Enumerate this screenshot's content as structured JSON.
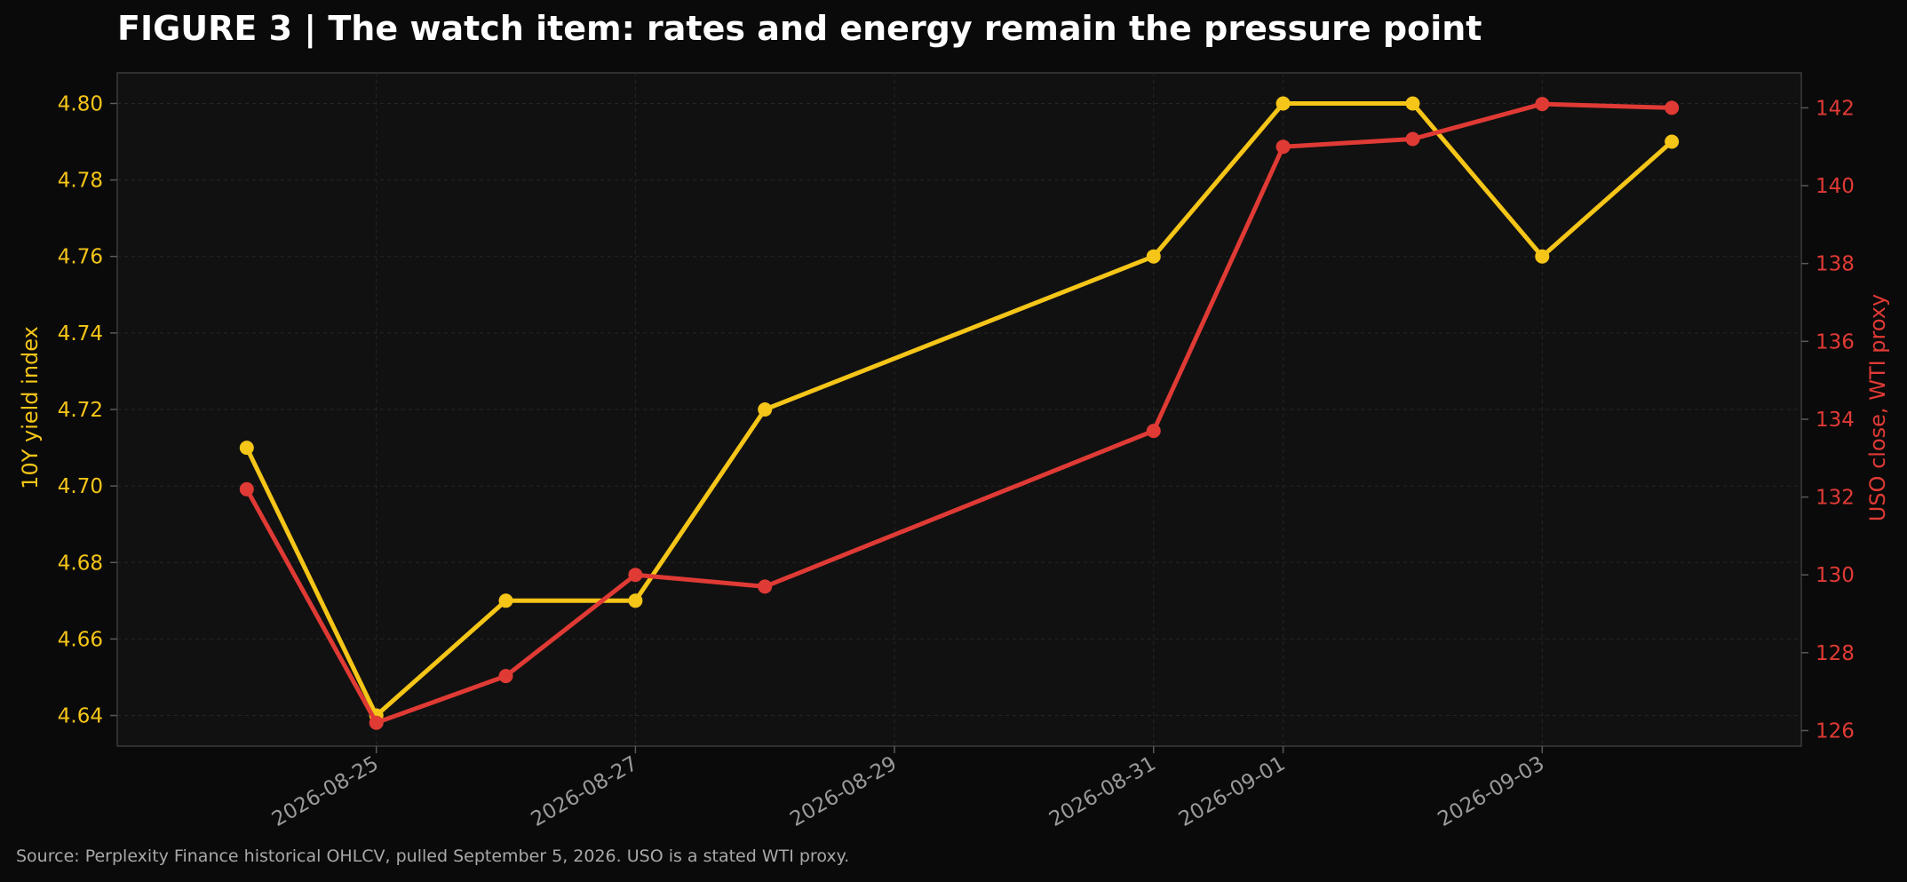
{
  "title": "FIGURE 3 | The watch item: rates and energy remain the pressure point",
  "source_note": "Source: Perplexity Finance historical OHLCV, pulled September 5, 2026. USO is a stated WTI proxy.",
  "colors": {
    "background": "#0a0a0a",
    "plot_background": "#111111",
    "yield_series": "#f5c518",
    "uso_series": "#e03a35",
    "x_tick_text": "#9a9a9a",
    "title_text": "#ffffff"
  },
  "chart_data": {
    "type": "line",
    "title": "FIGURE 3 | The watch item: rates and energy remain the pressure point",
    "xlabel": "",
    "ylabel_left": "10Y yield index",
    "ylabel_right": "USO close, WTI proxy",
    "x_type": "date",
    "x": [
      "2026-08-24",
      "2026-08-25",
      "2026-08-26",
      "2026-08-27",
      "2026-08-28",
      "2026-08-31",
      "2026-09-01",
      "2026-09-02",
      "2026-09-03",
      "2026-09-04"
    ],
    "xlim": [
      "2026-08-23",
      "2026-09-05"
    ],
    "x_ticks": [
      "2026-08-25",
      "2026-08-27",
      "2026-08-29",
      "2026-08-31",
      "2026-09-01",
      "2026-09-03"
    ],
    "ylim_left": [
      4.632,
      4.808
    ],
    "y_ticks_left": [
      "4.64",
      "4.66",
      "4.68",
      "4.70",
      "4.72",
      "4.74",
      "4.76",
      "4.78",
      "4.80"
    ],
    "ylim_right": [
      125.6,
      142.9
    ],
    "y_ticks_right": [
      "126",
      "128",
      "130",
      "132",
      "134",
      "136",
      "138",
      "140",
      "142"
    ],
    "grid": true,
    "series": [
      {
        "name": "10Y yield index",
        "axis": "left",
        "color": "#f5c518",
        "values": [
          4.71,
          4.64,
          4.67,
          4.67,
          4.72,
          4.76,
          4.8,
          4.8,
          4.76,
          4.79
        ]
      },
      {
        "name": "USO close, WTI proxy",
        "axis": "right",
        "color": "#e03a35",
        "values": [
          132.2,
          126.2,
          127.4,
          130.0,
          129.7,
          133.7,
          141.0,
          141.2,
          142.1,
          142.0
        ]
      }
    ]
  }
}
